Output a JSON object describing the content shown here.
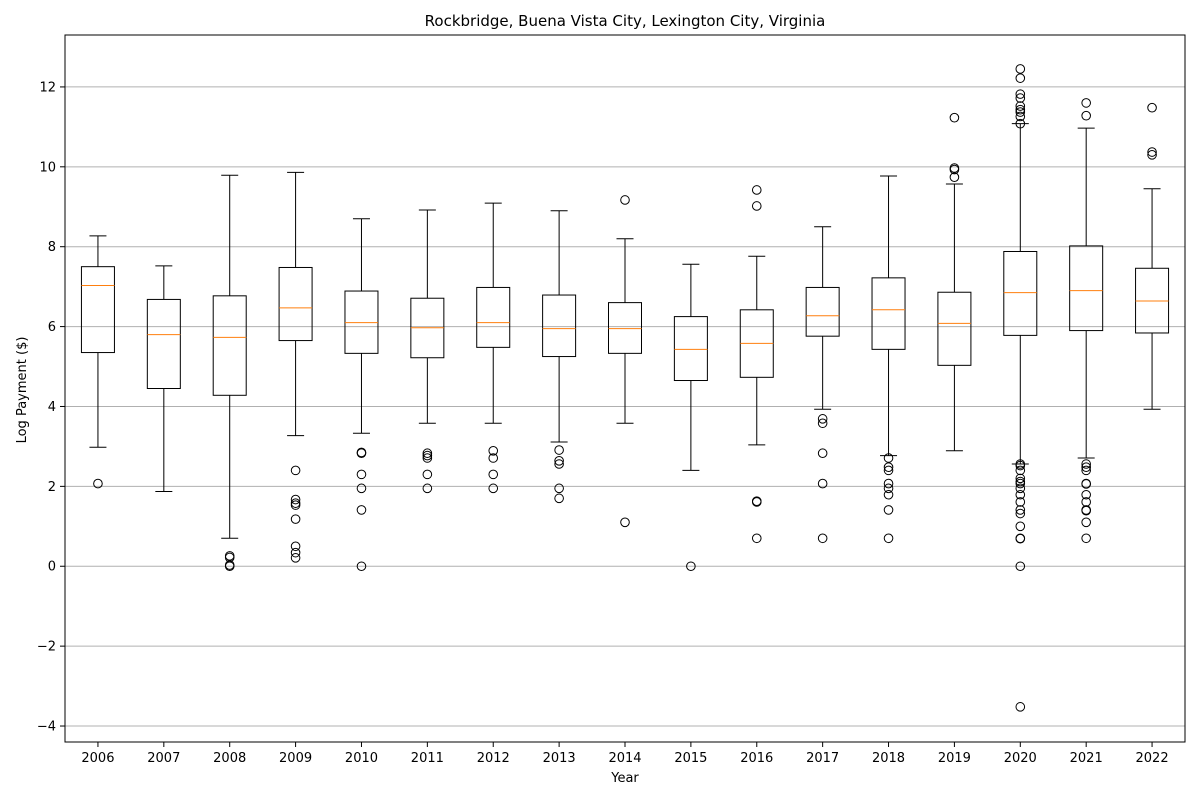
{
  "chart_data": {
    "type": "box",
    "title": "Rockbridge, Buena Vista City, Lexington City, Virginia",
    "xlabel": "Year",
    "ylabel": "Log Payment ($)",
    "ylim": [
      -4.4,
      13.3
    ],
    "yticks": [
      -4,
      -2,
      0,
      2,
      4,
      6,
      8,
      10,
      12
    ],
    "ytick_labels": [
      "−4",
      "−2",
      "0",
      "2",
      "4",
      "6",
      "8",
      "10",
      "12"
    ],
    "grid": "y",
    "colors": {
      "box": "#000000",
      "median": "#ff7f0e",
      "grid": "#b0b0b0"
    },
    "categories": [
      "2006",
      "2007",
      "2008",
      "2009",
      "2010",
      "2011",
      "2012",
      "2013",
      "2014",
      "2015",
      "2016",
      "2017",
      "2018",
      "2019",
      "2020",
      "2021",
      "2022"
    ],
    "boxes": [
      {
        "whislo": 2.98,
        "q1": 5.35,
        "med": 7.03,
        "q3": 7.5,
        "whishi": 8.27,
        "fliers": [
          2.07
        ]
      },
      {
        "whislo": 1.87,
        "q1": 4.45,
        "med": 5.8,
        "q3": 6.68,
        "whishi": 7.52,
        "fliers": []
      },
      {
        "whislo": 0.7,
        "q1": 4.28,
        "med": 5.73,
        "q3": 6.77,
        "whishi": 9.79,
        "fliers": [
          0.26,
          0.22,
          0.03,
          0.0
        ]
      },
      {
        "whislo": 3.27,
        "q1": 5.65,
        "med": 6.47,
        "q3": 7.48,
        "whishi": 9.86,
        "fliers": [
          2.4,
          1.67,
          1.58,
          1.53,
          1.18,
          0.5,
          0.34,
          0.21
        ]
      },
      {
        "whislo": 3.33,
        "q1": 5.33,
        "med": 6.1,
        "q3": 6.89,
        "whishi": 8.7,
        "fliers": [
          2.85,
          2.83,
          2.3,
          1.95,
          1.41,
          0.0
        ]
      },
      {
        "whislo": 3.58,
        "q1": 5.22,
        "med": 5.97,
        "q3": 6.71,
        "whishi": 8.92,
        "fliers": [
          2.83,
          2.77,
          2.71,
          2.3,
          1.95
        ]
      },
      {
        "whislo": 3.58,
        "q1": 5.48,
        "med": 6.1,
        "q3": 6.98,
        "whishi": 9.09,
        "fliers": [
          2.89,
          2.71,
          2.3,
          1.95
        ]
      },
      {
        "whislo": 3.11,
        "q1": 5.25,
        "med": 5.95,
        "q3": 6.79,
        "whishi": 8.9,
        "fliers": [
          2.91,
          2.64,
          2.56,
          1.95,
          1.7
        ]
      },
      {
        "whislo": 3.58,
        "q1": 5.33,
        "med": 5.95,
        "q3": 6.6,
        "whishi": 8.2,
        "fliers": [
          9.17,
          1.1
        ]
      },
      {
        "whislo": 2.4,
        "q1": 4.65,
        "med": 5.43,
        "q3": 6.25,
        "whishi": 7.56,
        "fliers": [
          0.0
        ]
      },
      {
        "whislo": 3.04,
        "q1": 4.73,
        "med": 5.58,
        "q3": 6.42,
        "whishi": 7.76,
        "fliers": [
          9.42,
          9.02,
          1.63,
          1.61,
          0.7
        ]
      },
      {
        "whislo": 3.93,
        "q1": 5.76,
        "med": 6.27,
        "q3": 6.98,
        "whishi": 8.5,
        "fliers": [
          3.69,
          3.58,
          2.83,
          2.07,
          0.7
        ]
      },
      {
        "whislo": 2.77,
        "q1": 5.43,
        "med": 6.42,
        "q3": 7.22,
        "whishi": 9.77,
        "fliers": [
          2.71,
          2.48,
          2.4,
          2.07,
          1.95,
          1.79,
          1.41,
          0.7
        ]
      },
      {
        "whislo": 2.89,
        "q1": 5.03,
        "med": 6.08,
        "q3": 6.86,
        "whishi": 9.57,
        "fliers": [
          11.23,
          9.97,
          9.93,
          9.74
        ]
      },
      {
        "whislo": 2.56,
        "q1": 5.78,
        "med": 6.85,
        "q3": 7.88,
        "whishi": 11.08,
        "fliers": [
          12.45,
          12.22,
          11.82,
          11.72,
          11.52,
          11.43,
          11.37,
          11.26,
          11.08,
          2.56,
          2.52,
          2.4,
          2.2,
          2.12,
          2.07,
          1.95,
          1.79,
          1.61,
          1.41,
          1.32,
          1.0,
          0.7,
          0.69,
          0.0,
          -3.52
        ]
      },
      {
        "whislo": 2.71,
        "q1": 5.9,
        "med": 6.9,
        "q3": 8.02,
        "whishi": 10.97,
        "fliers": [
          11.6,
          11.28,
          2.56,
          2.48,
          2.4,
          2.07,
          2.06,
          1.79,
          1.61,
          1.41,
          1.39,
          1.1,
          0.7
        ]
      },
      {
        "whislo": 3.93,
        "q1": 5.84,
        "med": 6.64,
        "q3": 7.46,
        "whishi": 9.45,
        "fliers": [
          11.48,
          10.37,
          10.3
        ]
      }
    ]
  }
}
